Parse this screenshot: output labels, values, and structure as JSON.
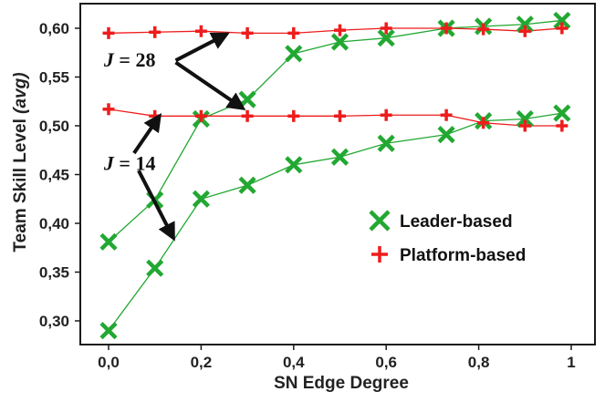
{
  "chart_data": {
    "type": "line",
    "title": "",
    "xlabel": "SN Edge Degree",
    "ylabel_main": "Team Skill Level ",
    "ylabel_italic": "(avg)",
    "xlim": [
      0.0,
      1.0
    ],
    "ylim": [
      0.28,
      0.62
    ],
    "x_ticks": [
      0.0,
      0.2,
      0.4,
      0.6,
      0.8,
      1.0
    ],
    "x_tick_labels": [
      "0,0",
      "0,2",
      "0,4",
      "0,6",
      "0,8",
      "1"
    ],
    "y_ticks": [
      0.3,
      0.35,
      0.4,
      0.45,
      0.5,
      0.55,
      0.6
    ],
    "y_tick_labels": [
      "0,30",
      "0,35",
      "0,40",
      "0,45",
      "0,50",
      "0,55",
      "0,60"
    ],
    "grid": false,
    "legend_position": "center-right",
    "x": [
      0.0,
      0.1,
      0.2,
      0.3,
      0.4,
      0.5,
      0.6,
      0.73,
      0.81,
      0.9,
      0.98
    ],
    "series": [
      {
        "name": "Leader-based",
        "group": "J = 28",
        "color": "#22a832",
        "marker": "x",
        "values": [
          0.381,
          0.424,
          0.507,
          0.527,
          0.574,
          0.586,
          0.59,
          0.6,
          0.602,
          0.604,
          0.608
        ]
      },
      {
        "name": "Leader-based",
        "group": "J = 14",
        "color": "#22a832",
        "marker": "x",
        "values": [
          0.29,
          0.354,
          0.425,
          0.439,
          0.46,
          0.468,
          0.482,
          0.491,
          0.505,
          0.507,
          0.513
        ]
      },
      {
        "name": "Platform-based",
        "group": "J = 28",
        "color": "#ee1c1c",
        "marker": "+",
        "values": [
          0.595,
          0.596,
          0.597,
          0.595,
          0.595,
          0.598,
          0.6,
          0.6,
          0.599,
          0.597,
          0.6
        ]
      },
      {
        "name": "Platform-based",
        "group": "J = 14",
        "color": "#ee1c1c",
        "marker": "+",
        "values": [
          0.517,
          0.51,
          0.51,
          0.51,
          0.51,
          0.51,
          0.511,
          0.511,
          0.503,
          0.5,
          0.5
        ]
      }
    ],
    "legend": [
      {
        "label": "Leader-based",
        "marker": "x",
        "color": "#22a832"
      },
      {
        "label": "Platform-based",
        "marker": "+",
        "color": "#ee1c1c"
      }
    ],
    "annotations": [
      {
        "text": "J = 28",
        "label_x": -0.01,
        "label_y": 0.568,
        "arrows": [
          {
            "x0": 0.145,
            "y0": 0.567,
            "x1": 0.255,
            "y1": 0.594
          },
          {
            "x0": 0.145,
            "y0": 0.565,
            "x1": 0.29,
            "y1": 0.518
          }
        ]
      },
      {
        "text": "J = 14",
        "label_x": -0.01,
        "label_y": 0.462,
        "arrows": [
          {
            "x0": 0.055,
            "y0": 0.472,
            "x1": 0.11,
            "y1": 0.51
          },
          {
            "x0": 0.065,
            "y0": 0.454,
            "x1": 0.14,
            "y1": 0.385
          }
        ]
      }
    ]
  }
}
